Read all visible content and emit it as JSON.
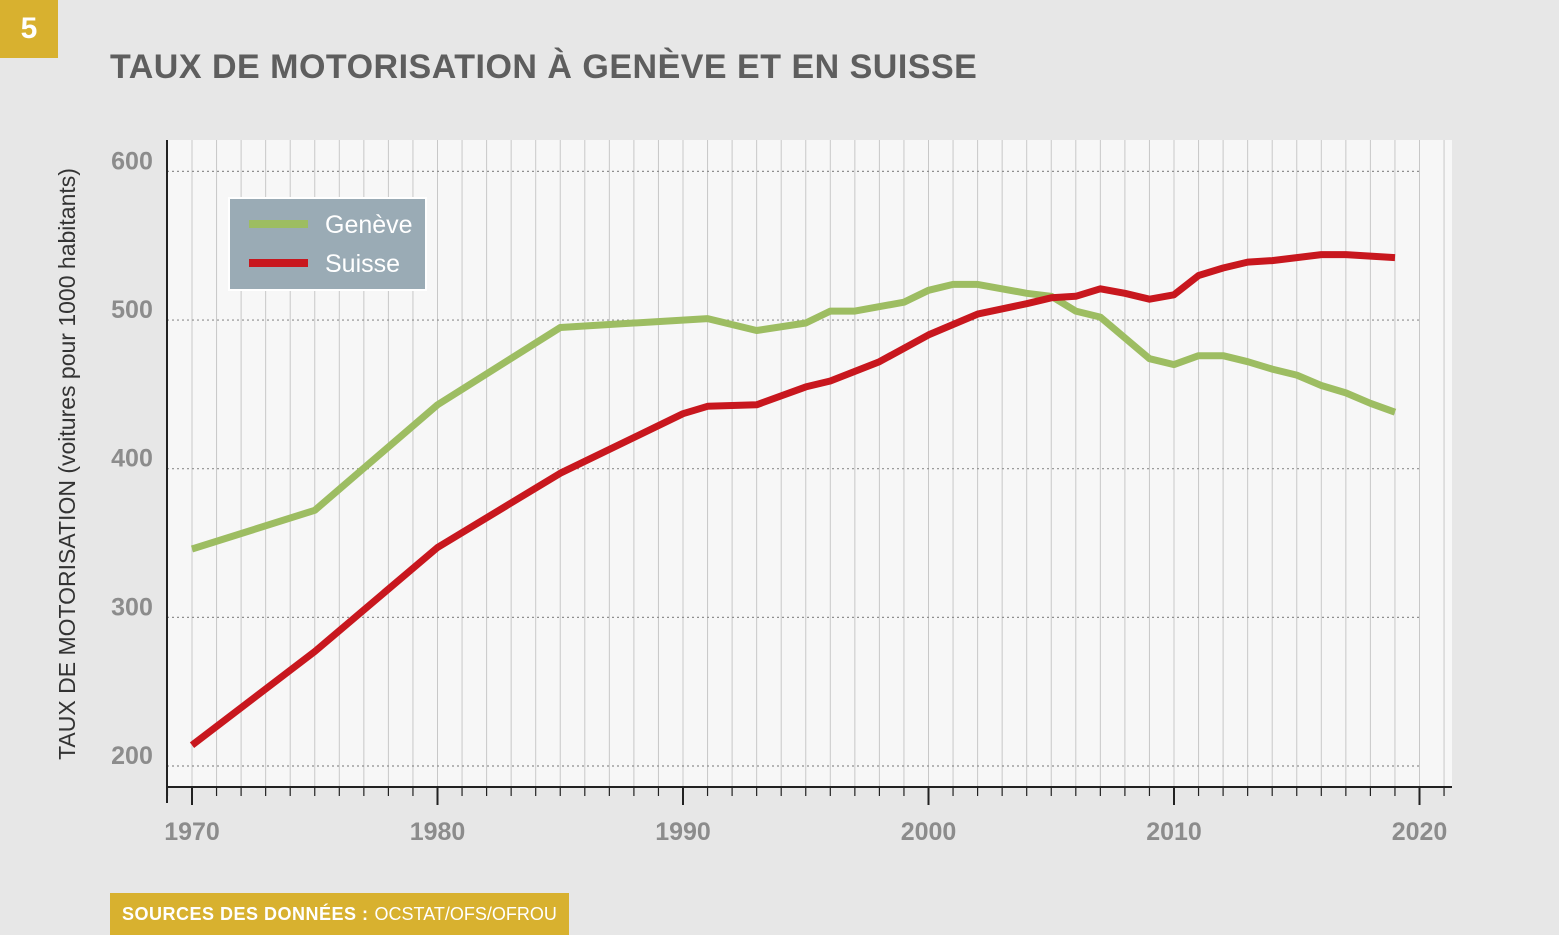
{
  "badge": "5",
  "title": "TAUX DE MOTORISATION À GENÈVE ET EN SUISSE",
  "source": {
    "label": "SOURCES DES DONNÉES :",
    "value": "OCSTAT/OFS/OFROU"
  },
  "colors": {
    "geneve": "#9dbd62",
    "suisse": "#c8171e",
    "accent": "#d8b12f",
    "legend_bg": "#9aabb5"
  },
  "chart_data": {
    "type": "line",
    "ylabel": "TAUX DE MOTORISATION (voitures pour 1000 habitants)",
    "xlabel": "",
    "xlim": [
      1969,
      2021
    ],
    "ylim": [
      190,
      620
    ],
    "xticks": [
      1970,
      1980,
      1990,
      2000,
      2010,
      2020
    ],
    "yticks": [
      200,
      300,
      400,
      500,
      600
    ],
    "grid": true,
    "legend": "top-left",
    "series": [
      {
        "name": "Genève",
        "x": [
          1970,
          1975,
          1980,
          1985,
          1991,
          1993,
          1995,
          1996,
          1997,
          1999,
          2000,
          2001,
          2002,
          2004,
          2005,
          2006,
          2007,
          2009,
          2010,
          2011,
          2012,
          2013,
          2014,
          2015,
          2016,
          2017,
          2018,
          2019
        ],
        "y": [
          346,
          372,
          443,
          495,
          501,
          493,
          498,
          506,
          506,
          512,
          520,
          524,
          524,
          518,
          516,
          506,
          502,
          474,
          470,
          476,
          476,
          472,
          467,
          463,
          456,
          451,
          444,
          438
        ]
      },
      {
        "name": "Suisse",
        "x": [
          1970,
          1975,
          1980,
          1985,
          1990,
          1991,
          1993,
          1995,
          1996,
          1998,
          2000,
          2002,
          2004,
          2005,
          2006,
          2007,
          2008,
          2009,
          2010,
          2011,
          2012,
          2013,
          2014,
          2015,
          2016,
          2017,
          2018,
          2019
        ],
        "y": [
          214,
          277,
          347,
          397,
          437,
          442,
          443,
          455,
          459,
          472,
          490,
          504,
          511,
          515,
          516,
          521,
          518,
          514,
          517,
          530,
          535,
          539,
          540,
          542,
          544,
          544,
          543,
          542
        ]
      }
    ]
  }
}
